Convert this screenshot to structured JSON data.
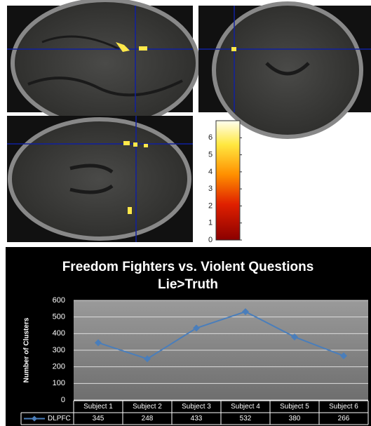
{
  "chart_data": [
    {
      "type": "colorbar",
      "ylim": [
        0,
        7
      ],
      "yticks": [
        0,
        1,
        2,
        3,
        4,
        5,
        6
      ]
    },
    {
      "type": "line",
      "title": "Freedom Fighters vs. Violent Questions",
      "subtitle": "Lie>Truth",
      "y_label": "Number of Clusters",
      "categories": [
        "Subject 1",
        "Subject 2",
        "Subject 3",
        "Subject 4",
        "Subject 5",
        "Subject 6"
      ],
      "series": [
        {
          "name": "DLPFC",
          "color": "#4a7ebb",
          "values": [
            345,
            248,
            433,
            532,
            380,
            266
          ]
        }
      ],
      "ylim": [
        0,
        600
      ],
      "yticks": [
        0,
        100,
        200,
        300,
        400,
        500,
        600
      ],
      "grid": true,
      "data_table": true
    }
  ]
}
